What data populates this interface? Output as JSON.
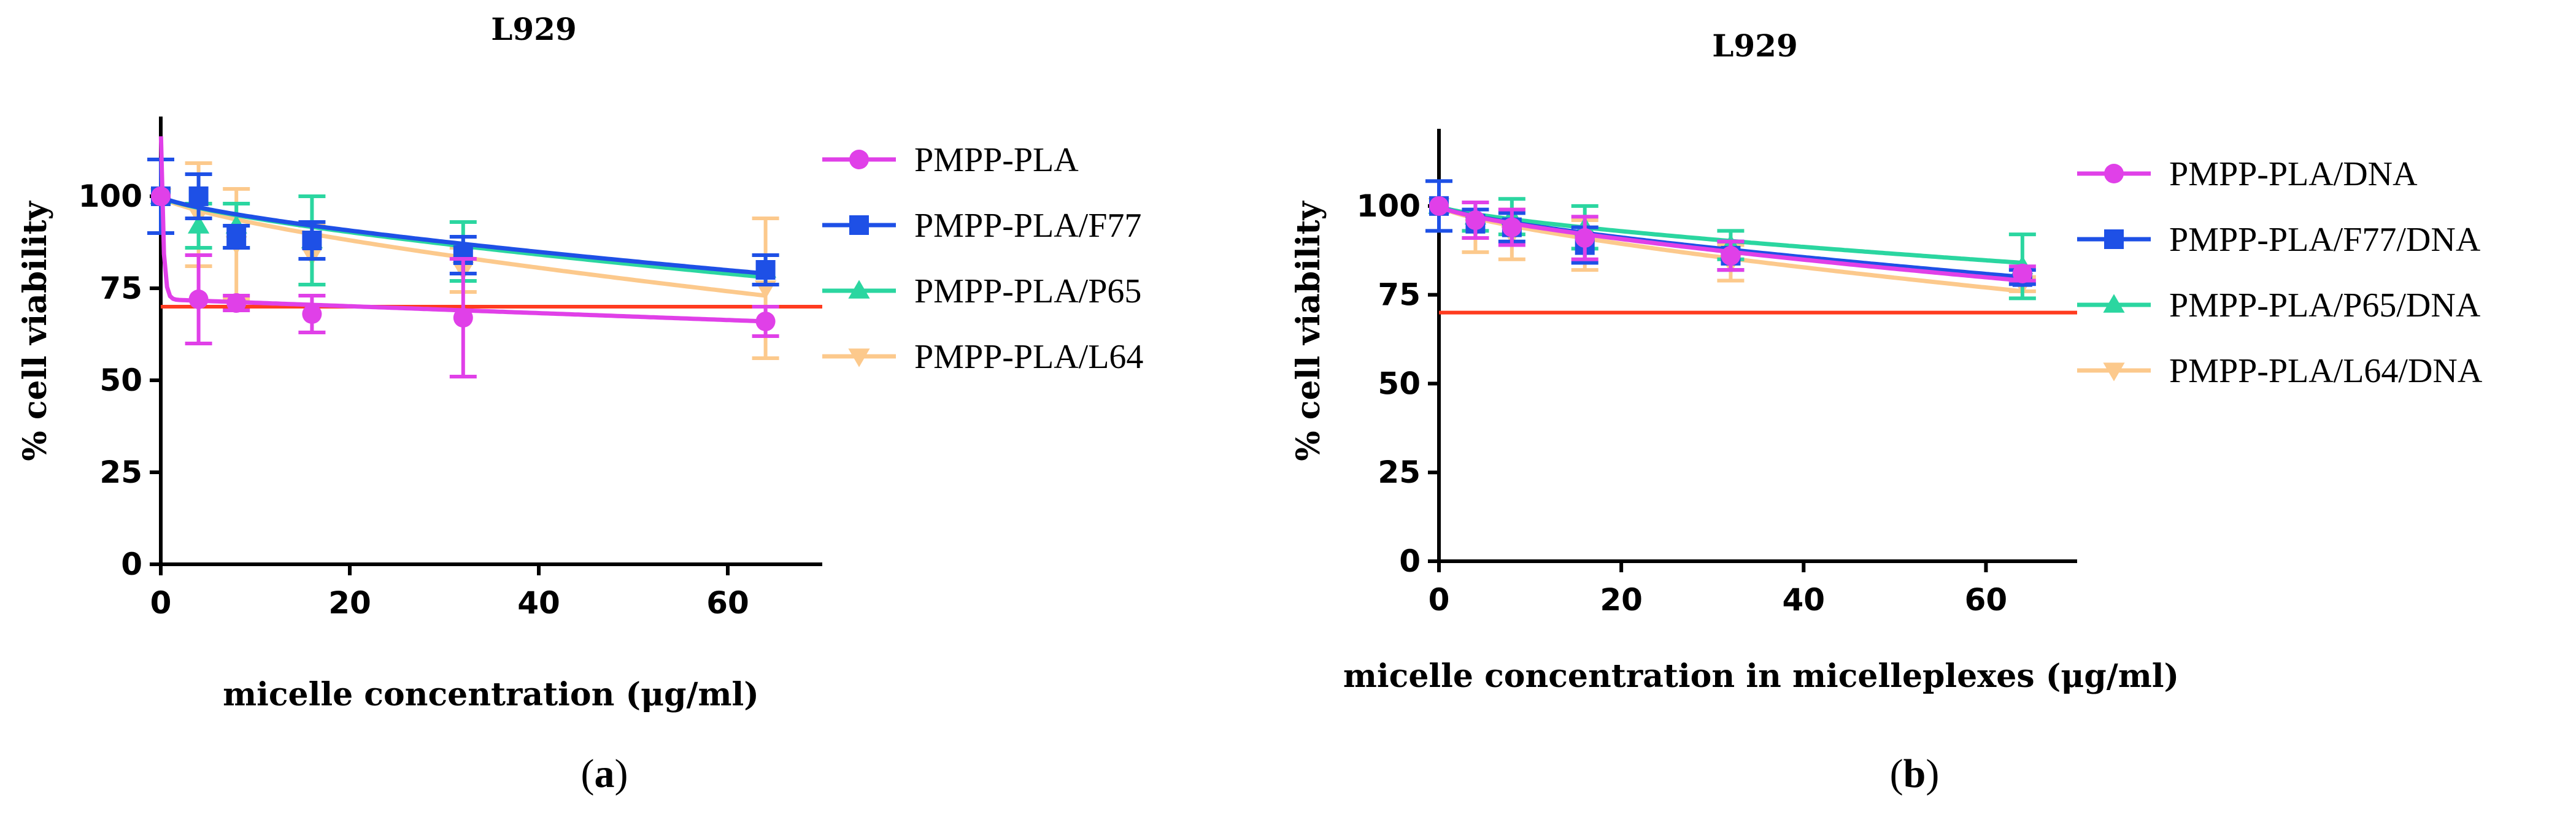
{
  "chart_data": [
    {
      "type": "line",
      "panel": "a",
      "title": "L929",
      "xlabel": "micelle concentration (μg/ml)",
      "ylabel": "% cell viability",
      "xlim": [
        0,
        70
      ],
      "ylim": [
        0,
        120
      ],
      "xticks": [
        0,
        20,
        40,
        60
      ],
      "yticks": [
        0,
        25,
        50,
        75,
        100
      ],
      "threshold": 70,
      "threshold_color": "#ff3b1f",
      "x": [
        0,
        4,
        8,
        16,
        32,
        64
      ],
      "series": [
        {
          "name": "PMPP-PLA",
          "color": "#e040e8",
          "marker": "circle",
          "values": [
            100,
            72,
            71,
            68,
            67,
            66
          ],
          "errors": [
            0,
            12,
            2,
            5,
            16,
            4
          ],
          "fit_type": "drop",
          "fit": [
            120,
            72,
            0.25,
            66
          ]
        },
        {
          "name": "PMPP-PLA/F77",
          "color": "#1e50e6",
          "marker": "square",
          "values": [
            100,
            100,
            89,
            88,
            84,
            80
          ],
          "errors": [
            10,
            6,
            3,
            5,
            5,
            4
          ],
          "fit_type": "power",
          "fit": [
            100,
            79
          ]
        },
        {
          "name": "PMPP-PLA/P65",
          "color": "#2bd6a0",
          "marker": "triangle-up",
          "values": [
            100,
            92,
            92,
            88,
            85,
            80
          ],
          "errors": [
            0,
            6,
            6,
            12,
            8,
            4
          ],
          "fit_type": "power",
          "fit": [
            100,
            78
          ]
        },
        {
          "name": "PMPP-PLA/L64",
          "color": "#fcc98c",
          "marker": "triangle-down",
          "values": [
            100,
            95,
            87,
            84,
            80,
            75
          ],
          "errors": [
            0,
            14,
            15,
            8,
            6,
            19
          ],
          "fit_type": "power",
          "fit": [
            100,
            73
          ]
        }
      ]
    },
    {
      "type": "line",
      "panel": "b",
      "title": "L929",
      "xlabel": "micelle concentration in micelleplexes (μg/ml)",
      "ylabel": "% cell viability",
      "xlim": [
        0,
        70
      ],
      "ylim": [
        0,
        120
      ],
      "xticks": [
        0,
        20,
        40,
        60
      ],
      "yticks": [
        0,
        25,
        50,
        75,
        100
      ],
      "threshold": 70,
      "threshold_color": "#ff3b1f",
      "x": [
        0,
        4,
        8,
        16,
        32,
        64
      ],
      "series": [
        {
          "name": "PMPP-PLA/DNA",
          "color": "#e040e8",
          "marker": "circle",
          "values": [
            100,
            96,
            94,
            91,
            86,
            81
          ],
          "errors": [
            0,
            5,
            5,
            6,
            4,
            2
          ],
          "fit_type": "power",
          "fit": [
            100,
            79
          ]
        },
        {
          "name": "PMPP-PLA/F77/DNA",
          "color": "#1e50e6",
          "marker": "square",
          "values": [
            100,
            95,
            94,
            89,
            86,
            80
          ],
          "errors": [
            7,
            4,
            4,
            5,
            4,
            2
          ],
          "fit_type": "power",
          "fit": [
            100,
            80
          ]
        },
        {
          "name": "PMPP-PLA/P65/DNA",
          "color": "#2bd6a0",
          "marker": "triangle-up",
          "values": [
            100,
            97,
            97,
            94,
            89,
            83
          ],
          "errors": [
            0,
            4,
            5,
            6,
            4,
            9
          ],
          "fit_type": "power",
          "fit": [
            100,
            84
          ]
        },
        {
          "name": "PMPP-PLA/L64/DNA",
          "color": "#fcc98c",
          "marker": "triangle-down",
          "values": [
            100,
            94,
            92,
            89,
            84,
            78
          ],
          "errors": [
            0,
            7,
            7,
            7,
            5,
            2
          ],
          "fit_type": "power",
          "fit": [
            100,
            76
          ]
        }
      ]
    }
  ],
  "panel_labels": [
    "a",
    "b"
  ]
}
